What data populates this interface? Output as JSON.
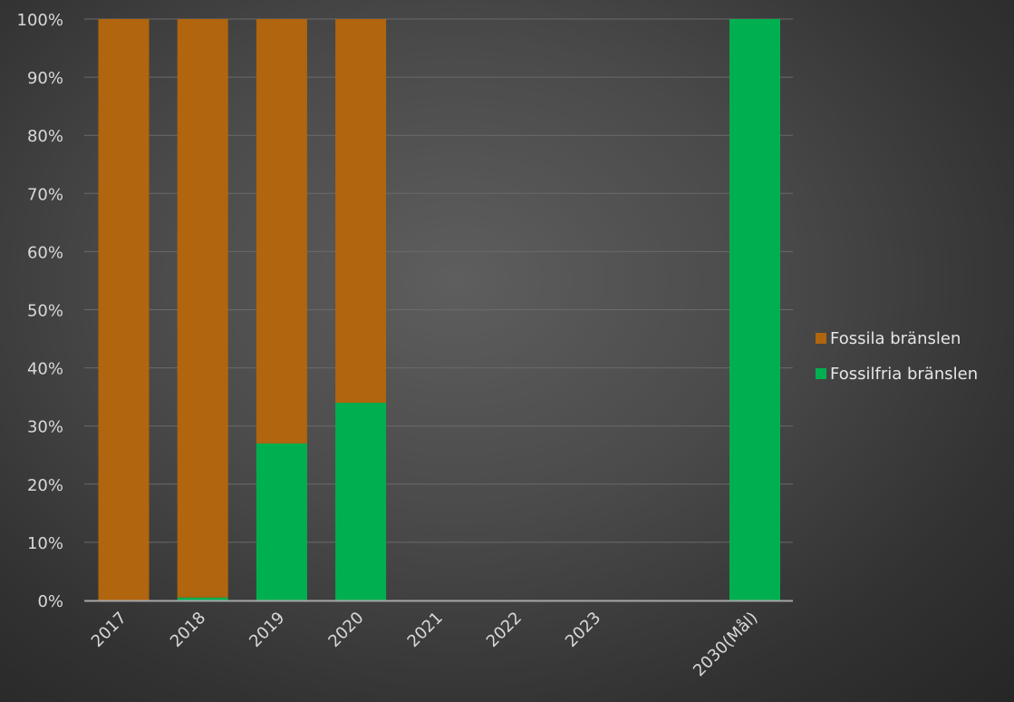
{
  "chart_data": {
    "type": "bar",
    "stacked": true,
    "categories": [
      "2017",
      "2018",
      "2019",
      "2020",
      "2021",
      "2022",
      "2023",
      "2030(Mål)"
    ],
    "series": [
      {
        "name": "Fossilfria bränslen",
        "color": "#00b050",
        "values": [
          0,
          0.5,
          27,
          34,
          null,
          null,
          null,
          100
        ]
      },
      {
        "name": "Fossila bränslen",
        "color": "#b0650e",
        "values": [
          100,
          99.5,
          73,
          66,
          null,
          null,
          null,
          0
        ]
      }
    ],
    "y_ticks": [
      "0%",
      "10%",
      "20%",
      "30%",
      "40%",
      "50%",
      "60%",
      "70%",
      "80%",
      "90%",
      "100%"
    ],
    "ylim": [
      0,
      100
    ],
    "grid": true,
    "legend_position": "right",
    "title": "",
    "xlabel": "",
    "ylabel": ""
  },
  "legend": [
    {
      "label": "Fossila bränslen",
      "color": "#b0650e"
    },
    {
      "label": "Fossilfria bränslen",
      "color": "#00b050"
    }
  ]
}
